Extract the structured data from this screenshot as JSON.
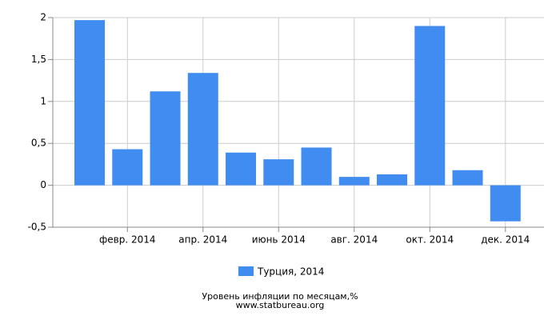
{
  "chart_data": {
    "type": "bar",
    "title": "Уровень инфляции по месяцам,%",
    "source": "www.statbureau.org",
    "categories": [
      null,
      "февр. 2014",
      null,
      "апр. 2014",
      null,
      "июнь 2014",
      null,
      "авг. 2014",
      null,
      "окт. 2014",
      null,
      "дек. 2014"
    ],
    "series": [
      {
        "name": "Турция, 2014",
        "color": "#418cf0",
        "values": [
          1.97,
          0.43,
          1.12,
          1.34,
          0.39,
          0.31,
          0.45,
          0.1,
          0.13,
          1.9,
          0.18,
          -0.43
        ]
      }
    ],
    "ylim": [
      -0.5,
      2
    ],
    "yticks": [
      {
        "value": -0.5,
        "label": "-0,5"
      },
      0,
      {
        "value": 0.5,
        "label": "0,5"
      },
      1,
      {
        "value": 1.5,
        "label": "1,5"
      },
      2
    ],
    "grid": true
  }
}
